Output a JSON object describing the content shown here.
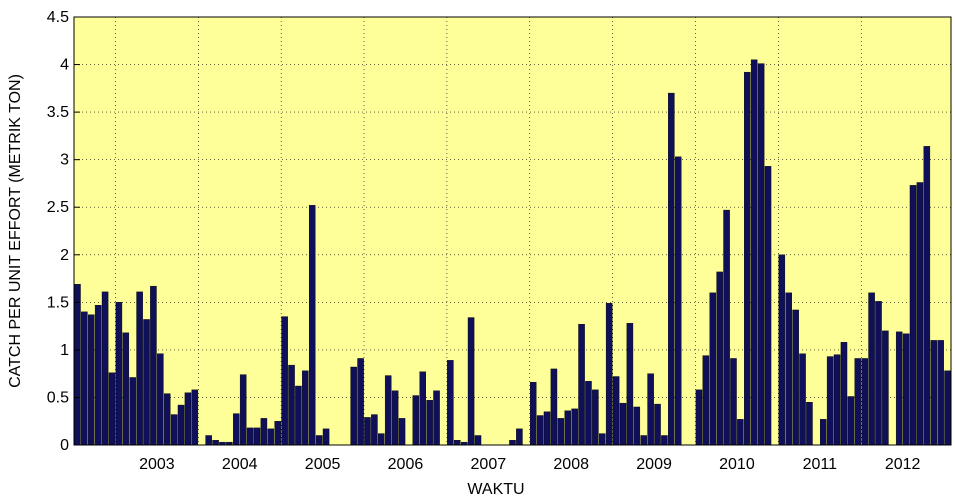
{
  "chart_data": {
    "type": "bar",
    "xlabel": "WAKTU",
    "ylabel": "CATCH PER UNIT EFFORT (METRIK TON)",
    "ylim": [
      0,
      4.5
    ],
    "yticks": [
      0,
      0.5,
      1,
      1.5,
      2,
      2.5,
      3,
      3.5,
      4,
      4.5
    ],
    "ytick_labels": [
      "0",
      "0.5",
      "1",
      "1.5",
      "2",
      "2.5",
      "3",
      "3.5",
      "4",
      "4.5"
    ],
    "xtick_labels": [
      "2003",
      "2004",
      "2005",
      "2006",
      "2007",
      "2008",
      "2009",
      "2010",
      "2011",
      "2012"
    ],
    "grid": true,
    "background_color": "#ffff99",
    "bar_color": "#0f0f5a",
    "series": [
      {
        "values": [
          1.69,
          1.4,
          1.37,
          1.47,
          1.61,
          0.76,
          1.5,
          1.18,
          0.71,
          1.61,
          1.32,
          1.67,
          0.96,
          0.54,
          0.32,
          0.42,
          0.55,
          0.58,
          0.0,
          0.1,
          0.05,
          0.03,
          0.03,
          0.33,
          0.74,
          0.18,
          0.18,
          0.28,
          0.17,
          0.25,
          1.35,
          0.84,
          0.62,
          0.78,
          2.52,
          0.1,
          0.17,
          0.0,
          0.0,
          0.0,
          0.82,
          0.91,
          0.29,
          0.32,
          0.12,
          0.73,
          0.57,
          0.28,
          0.0,
          0.52,
          0.77,
          0.47,
          0.57,
          0.0,
          0.89,
          0.05,
          0.03,
          1.34,
          0.1,
          0.0,
          0.0,
          0.0,
          0.0,
          0.05,
          0.17,
          0.0,
          0.66,
          0.31,
          0.35,
          0.8,
          0.28,
          0.36,
          0.38,
          1.27,
          0.67,
          0.58,
          0.12,
          1.49,
          0.72,
          0.44,
          1.28,
          0.4,
          0.1,
          0.75,
          0.43,
          0.1,
          3.7,
          3.03,
          0.0,
          0.0,
          0.58,
          0.94,
          1.6,
          1.82,
          2.47,
          0.91,
          0.27,
          3.92,
          4.05,
          4.01,
          2.93,
          0.0,
          2.0,
          1.6,
          1.42,
          0.96,
          0.45,
          0.0,
          0.27,
          0.93,
          0.95,
          1.08,
          0.51,
          0.91,
          0.91,
          1.6,
          1.51,
          1.2,
          0.0,
          1.19,
          1.17,
          2.73,
          2.76,
          3.14,
          1.1,
          1.1,
          0.78
        ]
      }
    ]
  }
}
